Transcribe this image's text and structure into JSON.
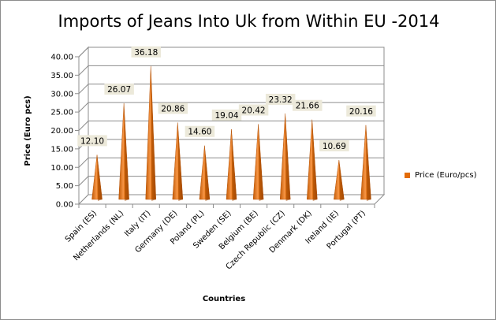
{
  "chart_data": {
    "type": "bar",
    "bar_shape": "cone",
    "title": "Imports of Jeans Into Uk from Within EU -2014",
    "xlabel": "Countries",
    "ylabel": "Price (Euro pcs)",
    "ylim": [
      0,
      40
    ],
    "ytick_step": 5,
    "ytick_labels": [
      "0.00",
      "5.00",
      "10.00",
      "15.00",
      "20.00",
      "25.00",
      "30.00",
      "35.00",
      "40.00"
    ],
    "grid": true,
    "legend_position": "right",
    "categories": [
      "Spain (ES)",
      "Netherlands (NL)",
      "Italy (IT)",
      "Germany (DE)",
      "Poland (PL)",
      "Sweden (SE)",
      "Belgium (BE)",
      "Czech Republic (CZ)",
      "Denmark (DK)",
      "Ireland (IE)",
      "Portugal (PT)"
    ],
    "series": [
      {
        "name": "Price (Euro/pcs)",
        "color": "#e36c09",
        "values": [
          12.1,
          26.07,
          36.18,
          20.86,
          14.6,
          19.04,
          20.42,
          23.32,
          21.66,
          10.69,
          20.16
        ],
        "data_labels": [
          "12.10",
          "26.07",
          "36.18",
          "20.86",
          "14.60",
          "19.04",
          "20.42",
          "23.32",
          "21.66",
          "10.69",
          "20.16"
        ]
      }
    ]
  }
}
